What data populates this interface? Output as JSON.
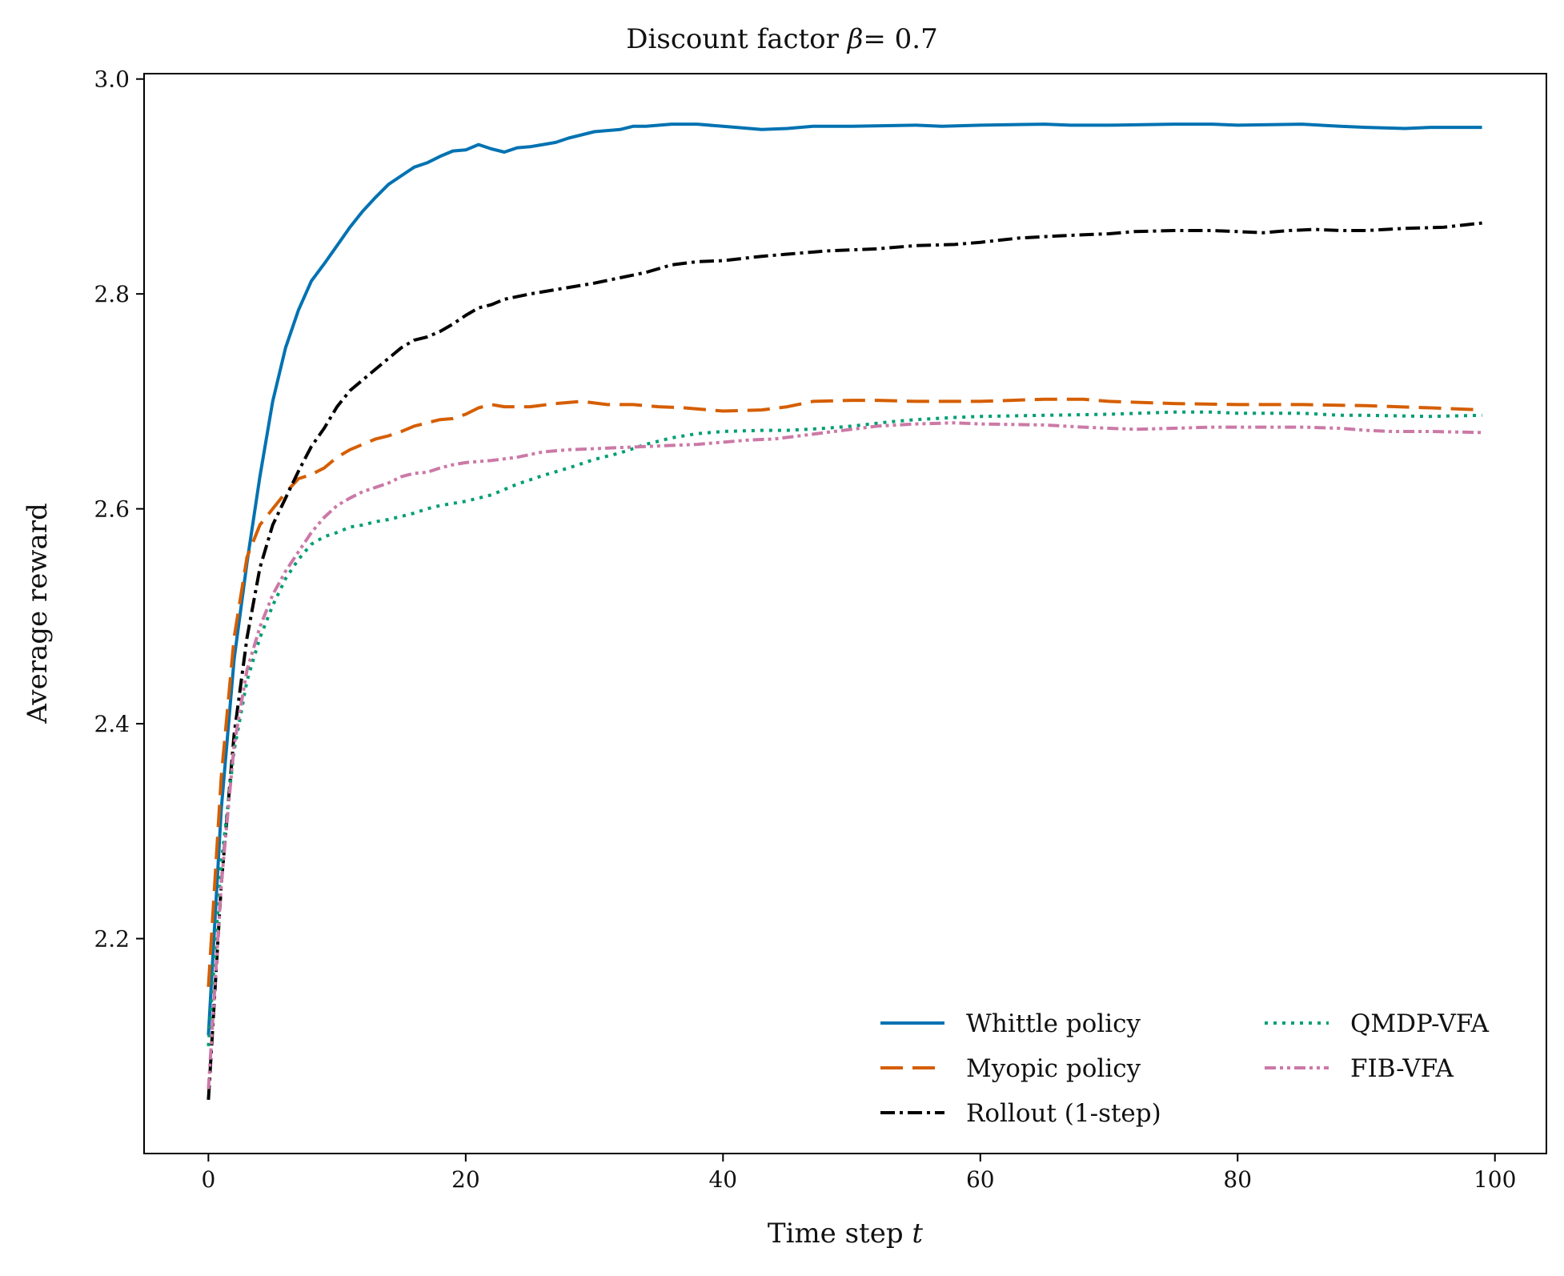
{
  "chart_data": {
    "type": "line",
    "title": "Discount factor β = 0.7",
    "title_prefix": "Discount factor ",
    "title_symbol": "β",
    "title_eq": "= 0.7",
    "xlabel": "Time step t",
    "xlabel_text": "Time step ",
    "xlabel_var": "t",
    "ylabel": "Average reward",
    "xlim": [
      -5,
      104
    ],
    "ylim": [
      2.0,
      3.005
    ],
    "xticks": [
      0,
      20,
      40,
      60,
      80,
      100
    ],
    "xtick_labels": [
      "0",
      "20",
      "40",
      "60",
      "80",
      "100"
    ],
    "yticks": [
      2.2,
      2.4,
      2.6,
      2.8,
      3.0
    ],
    "ytick_labels": [
      "2.2",
      "2.4",
      "2.6",
      "2.8",
      "3.0"
    ],
    "grid": false,
    "legend_position": "lower-right",
    "legend_columns": 2,
    "series": [
      {
        "name": "Whittle policy",
        "color": "#0072B2",
        "style": "solid",
        "points": [
          [
            0,
            2.11
          ],
          [
            1,
            2.32
          ],
          [
            2,
            2.46
          ],
          [
            3,
            2.55
          ],
          [
            4,
            2.63
          ],
          [
            5,
            2.7
          ],
          [
            6,
            2.75
          ],
          [
            7,
            2.785
          ],
          [
            8,
            2.812
          ],
          [
            9,
            2.828
          ],
          [
            10,
            2.845
          ],
          [
            11,
            2.862
          ],
          [
            12,
            2.877
          ],
          [
            13,
            2.89
          ],
          [
            14,
            2.902
          ],
          [
            15,
            2.91
          ],
          [
            16,
            2.918
          ],
          [
            17,
            2.922
          ],
          [
            18,
            2.928
          ],
          [
            19,
            2.933
          ],
          [
            20,
            2.934
          ],
          [
            21,
            2.939
          ],
          [
            22,
            2.935
          ],
          [
            23,
            2.932
          ],
          [
            24,
            2.936
          ],
          [
            25,
            2.937
          ],
          [
            26,
            2.939
          ],
          [
            27,
            2.941
          ],
          [
            28,
            2.945
          ],
          [
            29,
            2.948
          ],
          [
            30,
            2.951
          ],
          [
            32,
            2.953
          ],
          [
            33,
            2.956
          ],
          [
            34,
            2.956
          ],
          [
            36,
            2.958
          ],
          [
            38,
            2.958
          ],
          [
            40,
            2.956
          ],
          [
            43,
            2.953
          ],
          [
            45,
            2.954
          ],
          [
            47,
            2.956
          ],
          [
            50,
            2.956
          ],
          [
            55,
            2.957
          ],
          [
            57,
            2.956
          ],
          [
            60,
            2.957
          ],
          [
            65,
            2.958
          ],
          [
            67,
            2.957
          ],
          [
            70,
            2.957
          ],
          [
            75,
            2.958
          ],
          [
            78,
            2.958
          ],
          [
            80,
            2.957
          ],
          [
            85,
            2.958
          ],
          [
            88,
            2.956
          ],
          [
            90,
            2.955
          ],
          [
            93,
            2.954
          ],
          [
            95,
            2.955
          ],
          [
            99,
            2.955
          ]
        ]
      },
      {
        "name": "Myopic policy",
        "color": "#D55E00",
        "style": "dashed",
        "points": [
          [
            0,
            2.155
          ],
          [
            1,
            2.35
          ],
          [
            2,
            2.48
          ],
          [
            3,
            2.555
          ],
          [
            4,
            2.585
          ],
          [
            5,
            2.6
          ],
          [
            6,
            2.615
          ],
          [
            7,
            2.628
          ],
          [
            8,
            2.632
          ],
          [
            9,
            2.638
          ],
          [
            10,
            2.648
          ],
          [
            11,
            2.655
          ],
          [
            12,
            2.66
          ],
          [
            13,
            2.665
          ],
          [
            14,
            2.668
          ],
          [
            15,
            2.672
          ],
          [
            16,
            2.677
          ],
          [
            17,
            2.68
          ],
          [
            18,
            2.683
          ],
          [
            19,
            2.684
          ],
          [
            20,
            2.688
          ],
          [
            21,
            2.694
          ],
          [
            22,
            2.697
          ],
          [
            23,
            2.695
          ],
          [
            25,
            2.695
          ],
          [
            27,
            2.698
          ],
          [
            29,
            2.7
          ],
          [
            31,
            2.697
          ],
          [
            33,
            2.697
          ],
          [
            35,
            2.695
          ],
          [
            37,
            2.694
          ],
          [
            40,
            2.691
          ],
          [
            43,
            2.692
          ],
          [
            45,
            2.695
          ],
          [
            47,
            2.7
          ],
          [
            50,
            2.701
          ],
          [
            52,
            2.701
          ],
          [
            55,
            2.7
          ],
          [
            60,
            2.7
          ],
          [
            65,
            2.702
          ],
          [
            68,
            2.702
          ],
          [
            70,
            2.7
          ],
          [
            75,
            2.698
          ],
          [
            80,
            2.697
          ],
          [
            85,
            2.697
          ],
          [
            90,
            2.696
          ],
          [
            95,
            2.694
          ],
          [
            99,
            2.692
          ]
        ]
      },
      {
        "name": "Rollout (1-step)",
        "color": "#000000",
        "style": "dashdot",
        "points": [
          [
            0,
            2.05
          ],
          [
            1,
            2.25
          ],
          [
            2,
            2.39
          ],
          [
            3,
            2.48
          ],
          [
            4,
            2.545
          ],
          [
            5,
            2.585
          ],
          [
            6,
            2.61
          ],
          [
            7,
            2.635
          ],
          [
            8,
            2.658
          ],
          [
            9,
            2.675
          ],
          [
            10,
            2.695
          ],
          [
            11,
            2.71
          ],
          [
            12,
            2.72
          ],
          [
            13,
            2.73
          ],
          [
            14,
            2.74
          ],
          [
            15,
            2.75
          ],
          [
            16,
            2.757
          ],
          [
            17,
            2.76
          ],
          [
            18,
            2.765
          ],
          [
            19,
            2.772
          ],
          [
            20,
            2.78
          ],
          [
            21,
            2.787
          ],
          [
            22,
            2.79
          ],
          [
            23,
            2.795
          ],
          [
            25,
            2.8
          ],
          [
            27,
            2.804
          ],
          [
            30,
            2.81
          ],
          [
            32,
            2.815
          ],
          [
            34,
            2.82
          ],
          [
            36,
            2.827
          ],
          [
            38,
            2.83
          ],
          [
            40,
            2.831
          ],
          [
            43,
            2.835
          ],
          [
            45,
            2.837
          ],
          [
            48,
            2.84
          ],
          [
            52,
            2.842
          ],
          [
            55,
            2.845
          ],
          [
            58,
            2.846
          ],
          [
            60,
            2.848
          ],
          [
            63,
            2.852
          ],
          [
            66,
            2.854
          ],
          [
            70,
            2.856
          ],
          [
            72,
            2.858
          ],
          [
            75,
            2.859
          ],
          [
            78,
            2.859
          ],
          [
            80,
            2.858
          ],
          [
            82,
            2.857
          ],
          [
            84,
            2.859
          ],
          [
            86,
            2.86
          ],
          [
            88,
            2.859
          ],
          [
            90,
            2.859
          ],
          [
            93,
            2.861
          ],
          [
            96,
            2.862
          ],
          [
            99,
            2.866
          ]
        ]
      },
      {
        "name": "QMDP-VFA",
        "color": "#009E73",
        "style": "dotted",
        "points": [
          [
            0,
            2.1
          ],
          [
            1,
            2.27
          ],
          [
            2,
            2.375
          ],
          [
            3,
            2.44
          ],
          [
            4,
            2.48
          ],
          [
            5,
            2.51
          ],
          [
            6,
            2.535
          ],
          [
            7,
            2.553
          ],
          [
            8,
            2.567
          ],
          [
            9,
            2.574
          ],
          [
            10,
            2.578
          ],
          [
            11,
            2.583
          ],
          [
            12,
            2.585
          ],
          [
            13,
            2.588
          ],
          [
            14,
            2.59
          ],
          [
            15,
            2.593
          ],
          [
            16,
            2.596
          ],
          [
            17,
            2.6
          ],
          [
            18,
            2.603
          ],
          [
            19,
            2.605
          ],
          [
            20,
            2.607
          ],
          [
            21,
            2.61
          ],
          [
            22,
            2.613
          ],
          [
            23,
            2.618
          ],
          [
            24,
            2.623
          ],
          [
            26,
            2.631
          ],
          [
            28,
            2.638
          ],
          [
            30,
            2.646
          ],
          [
            32,
            2.652
          ],
          [
            34,
            2.66
          ],
          [
            36,
            2.666
          ],
          [
            38,
            2.67
          ],
          [
            40,
            2.672
          ],
          [
            43,
            2.673
          ],
          [
            45,
            2.673
          ],
          [
            48,
            2.675
          ],
          [
            50,
            2.677
          ],
          [
            53,
            2.681
          ],
          [
            55,
            2.683
          ],
          [
            58,
            2.685
          ],
          [
            60,
            2.686
          ],
          [
            65,
            2.687
          ],
          [
            70,
            2.688
          ],
          [
            75,
            2.69
          ],
          [
            78,
            2.69
          ],
          [
            80,
            2.689
          ],
          [
            85,
            2.689
          ],
          [
            88,
            2.687
          ],
          [
            90,
            2.687
          ],
          [
            95,
            2.686
          ],
          [
            99,
            2.687
          ]
        ]
      },
      {
        "name": "FIB-VFA",
        "color": "#CC79A7",
        "style": "dashdotdot",
        "points": [
          [
            0,
            2.06
          ],
          [
            1,
            2.25
          ],
          [
            2,
            2.38
          ],
          [
            3,
            2.45
          ],
          [
            4,
            2.49
          ],
          [
            5,
            2.52
          ],
          [
            6,
            2.542
          ],
          [
            7,
            2.56
          ],
          [
            8,
            2.578
          ],
          [
            9,
            2.592
          ],
          [
            10,
            2.603
          ],
          [
            11,
            2.61
          ],
          [
            12,
            2.616
          ],
          [
            13,
            2.62
          ],
          [
            14,
            2.624
          ],
          [
            15,
            2.63
          ],
          [
            16,
            2.633
          ],
          [
            17,
            2.634
          ],
          [
            18,
            2.638
          ],
          [
            19,
            2.641
          ],
          [
            20,
            2.643
          ],
          [
            22,
            2.645
          ],
          [
            24,
            2.648
          ],
          [
            26,
            2.653
          ],
          [
            28,
            2.655
          ],
          [
            30,
            2.656
          ],
          [
            32,
            2.657
          ],
          [
            34,
            2.658
          ],
          [
            36,
            2.659
          ],
          [
            38,
            2.66
          ],
          [
            40,
            2.662
          ],
          [
            42,
            2.664
          ],
          [
            44,
            2.665
          ],
          [
            46,
            2.668
          ],
          [
            48,
            2.671
          ],
          [
            50,
            2.674
          ],
          [
            52,
            2.677
          ],
          [
            55,
            2.679
          ],
          [
            58,
            2.68
          ],
          [
            60,
            2.679
          ],
          [
            65,
            2.678
          ],
          [
            68,
            2.676
          ],
          [
            70,
            2.675
          ],
          [
            72,
            2.674
          ],
          [
            75,
            2.675
          ],
          [
            78,
            2.676
          ],
          [
            80,
            2.676
          ],
          [
            85,
            2.676
          ],
          [
            88,
            2.675
          ],
          [
            90,
            2.673
          ],
          [
            92,
            2.672
          ],
          [
            95,
            2.672
          ],
          [
            99,
            2.671
          ]
        ]
      }
    ]
  }
}
